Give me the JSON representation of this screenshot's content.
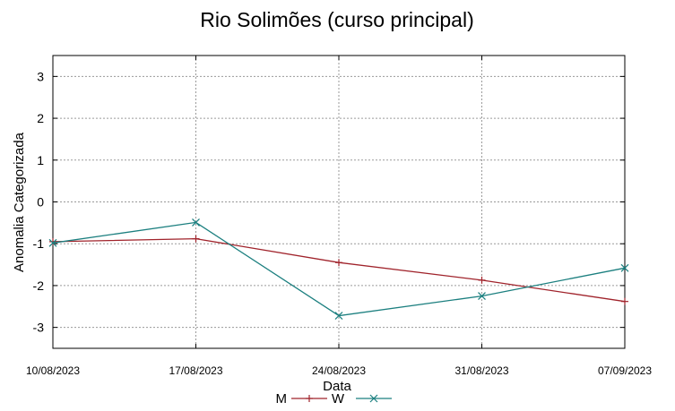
{
  "chart_data": {
    "type": "line",
    "title": "Rio Solimões (curso principal)",
    "xlabel": "Data",
    "ylabel": "Anomalia Categorizada",
    "x_ticks": [
      "10/08/2023",
      "17/08/2023",
      "24/08/2023",
      "31/08/2023",
      "07/09/2023"
    ],
    "y_ticks": [
      3,
      2,
      1,
      0,
      -1,
      -2,
      -3
    ],
    "ylim": [
      -3.5,
      3.5
    ],
    "xlim": [
      "2023-08-10",
      "2023-09-07"
    ],
    "grid": true,
    "legend_position": "bottom",
    "series": [
      {
        "name": "M",
        "color": "#a0232b",
        "marker": "plus",
        "x": [
          "2023-08-10",
          "2023-08-17",
          "2023-08-24",
          "2023-08-31",
          "2023-09-07"
        ],
        "y": [
          -0.95,
          -0.88,
          -1.45,
          -1.87,
          -2.38
        ]
      },
      {
        "name": "W",
        "color": "#1b7f7f",
        "marker": "cross",
        "x": [
          "2023-08-10",
          "2023-08-17",
          "2023-08-24",
          "2023-08-31",
          "2023-09-07"
        ],
        "y": [
          -0.98,
          -0.49,
          -2.72,
          -2.25,
          -1.58
        ]
      }
    ]
  }
}
